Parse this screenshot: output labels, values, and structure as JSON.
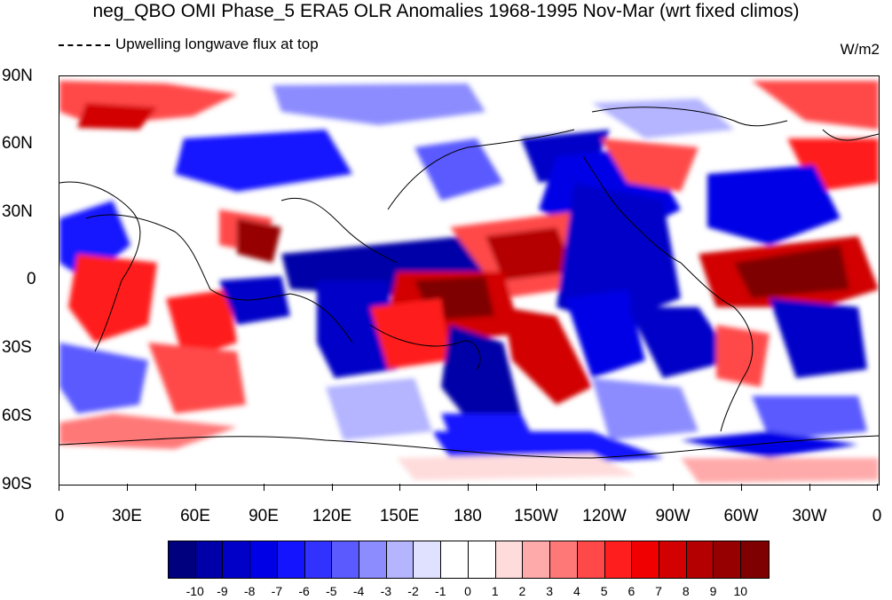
{
  "title": "neg_QBO OMI Phase_5 ERA5 OLR Anomalies 1968-1995 Nov-Mar (wrt fixed climos)",
  "legend": {
    "line_label": "Upwelling longwave flux at top"
  },
  "units": "W/m2",
  "y_axis_labels": [
    "90N",
    "60N",
    "30N",
    "0",
    "30S",
    "60S",
    "90S"
  ],
  "x_axis_labels": [
    "0",
    "30E",
    "60E",
    "90E",
    "120E",
    "150E",
    "180",
    "150W",
    "120W",
    "90W",
    "60W",
    "30W",
    "0"
  ],
  "colorbar": {
    "labels": [
      "-10",
      "-9",
      "-8",
      "-7",
      "-6",
      "-5",
      "-4",
      "-3",
      "-2",
      "-1",
      "0",
      "1",
      "2",
      "3",
      "4",
      "5",
      "6",
      "7",
      "8",
      "9",
      "10"
    ],
    "colors": [
      "#00007f",
      "#0000a8",
      "#0000c8",
      "#0000e6",
      "#1414ff",
      "#3232ff",
      "#5a5aff",
      "#8c8cff",
      "#b4b4ff",
      "#e0e0ff",
      "#ffffff",
      "#ffffff",
      "#ffdcdc",
      "#ffaaaa",
      "#ff7878",
      "#ff4848",
      "#ff1e1e",
      "#f00000",
      "#d20000",
      "#b40000",
      "#960000",
      "#7f0000"
    ]
  }
}
